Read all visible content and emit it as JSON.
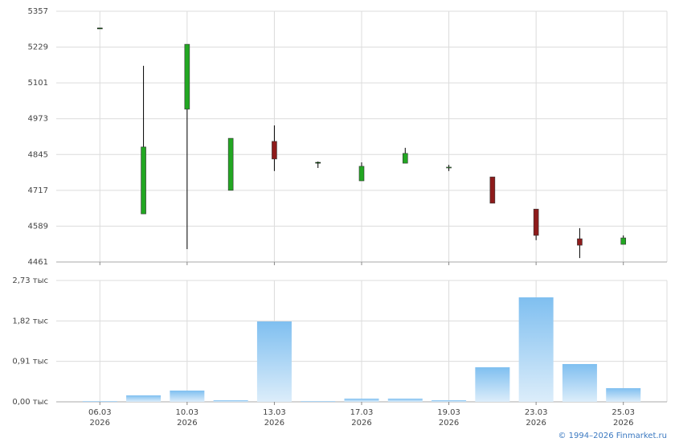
{
  "chart_data": [
    {
      "type": "candlestick",
      "open": [
        5297,
        4633,
        5007,
        4717,
        4892,
        4817,
        4751,
        4814,
        4797,
        4765,
        4650,
        4544,
        4524
      ],
      "high": [
        5297,
        5162,
        5239,
        4903,
        4949,
        4820,
        4817,
        4869,
        4808,
        4765,
        4650,
        4582,
        4556
      ],
      "low": [
        5297,
        4633,
        4507,
        4717,
        4786,
        4797,
        4751,
        4814,
        4786,
        4671,
        4539,
        4475,
        4524
      ],
      "close": [
        5297,
        4872,
        5239,
        4903,
        4829,
        4817,
        4803,
        4849,
        4800,
        4671,
        4556,
        4521,
        4547
      ],
      "up_color": "#22a722",
      "down_color": "#8e1b1b",
      "ylim": [
        4461,
        5357
      ],
      "yticks": [
        4461,
        4589,
        4717,
        4845,
        4973,
        5101,
        5229,
        5357
      ],
      "grid": true
    },
    {
      "type": "bar",
      "categories": [
        [
          "06.03",
          "2026"
        ],
        null,
        [
          "10.03",
          "2026"
        ],
        null,
        [
          "13.03",
          "2026"
        ],
        null,
        [
          "17.03",
          "2026"
        ],
        null,
        [
          "19.03",
          "2026"
        ],
        null,
        [
          "23.03",
          "2026"
        ],
        null,
        [
          "25.03",
          "2026"
        ]
      ],
      "values": [
        18,
        145,
        253,
        36,
        1808,
        18,
        72,
        72,
        36,
        777,
        2350,
        850,
        307
      ],
      "color": "#7fbff0",
      "ylim": [
        0,
        2730
      ],
      "yticks": [
        {
          "value": 0,
          "label": "0,00 тыс"
        },
        {
          "value": 910,
          "label": "0,91 тыс"
        },
        {
          "value": 1820,
          "label": "1,82 тыс"
        },
        {
          "value": 2730,
          "label": "2,73 тыс"
        }
      ],
      "grid": true
    }
  ],
  "footer": "© 1994–2026 Finmarket.ru"
}
